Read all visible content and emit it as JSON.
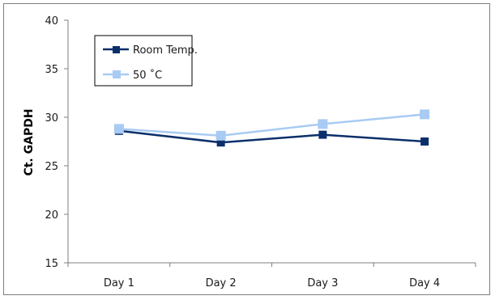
{
  "chart_data": {
    "type": "line",
    "categories": [
      "Day 1",
      "Day 2",
      "Day 3",
      "Day 4"
    ],
    "ylabel": "Ct. GAPDH",
    "ylim": [
      15,
      40
    ],
    "yticks": [
      15,
      20,
      25,
      30,
      35,
      40
    ],
    "grid": false,
    "legend_position": "top-left",
    "series": [
      {
        "name": "Room Temp.",
        "values": [
          28.6,
          27.4,
          28.2,
          27.5
        ],
        "color": "#0b2f6a"
      },
      {
        "name": "50 ˚C",
        "values": [
          28.8,
          28.1,
          29.3,
          30.3
        ],
        "color": "#a8cbf3"
      }
    ]
  }
}
